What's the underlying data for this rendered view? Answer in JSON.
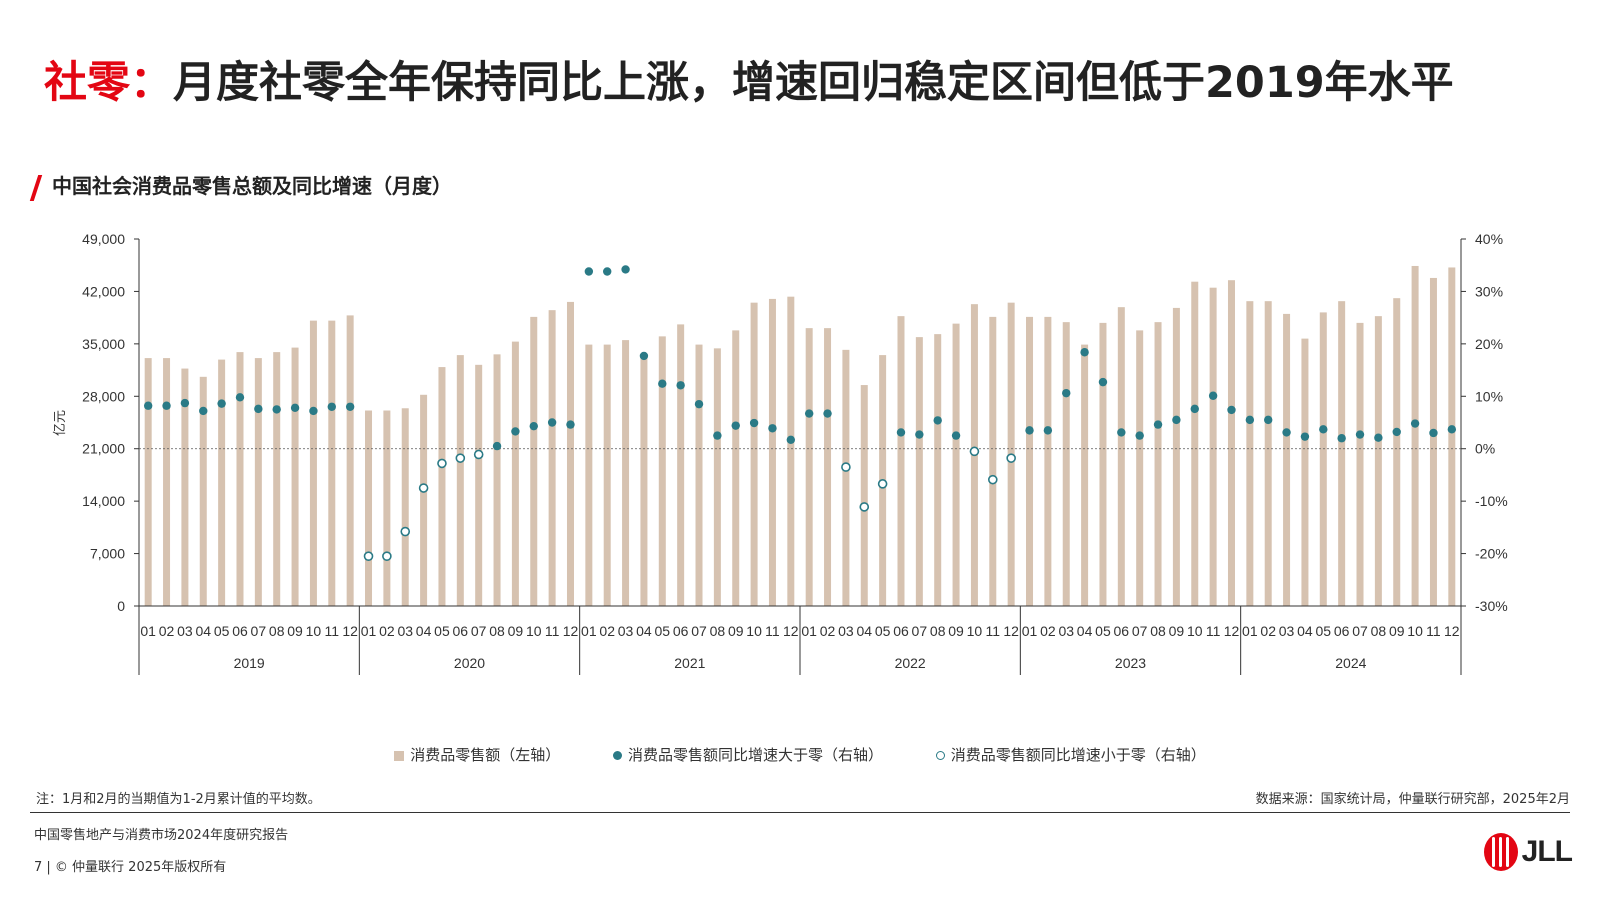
{
  "header": {
    "title_highlight": "社零：",
    "title_rest": "月度社零全年保持同比上涨，增速回归稳定区间但低于2019年水平"
  },
  "chart_title": "中国社会消费品零售总额及同比增速（月度）",
  "chart_data": {
    "type": "bar",
    "title": "中国社会消费品零售总额及同比增速（月度）",
    "ylabel": "亿元",
    "ylim": [
      0,
      49000
    ],
    "y_ticks": [
      "49,000",
      "42,000",
      "35,000",
      "28,000",
      "21,000",
      "14,000",
      "7,000",
      "0"
    ],
    "y2lim": [
      -30,
      40
    ],
    "y2_ticks": [
      "40%",
      "30%",
      "20%",
      "10%",
      "0%",
      "-10%",
      "-20%",
      "-30%"
    ],
    "years": [
      "2019",
      "2020",
      "2021",
      "2022",
      "2023",
      "2024"
    ],
    "months": [
      "01",
      "02",
      "03",
      "04",
      "05",
      "06",
      "07",
      "08",
      "09",
      "10",
      "11",
      "12"
    ],
    "series": [
      {
        "name": "消费品零售额（左轴）",
        "axis": "left",
        "values": [
          33100,
          33100,
          31700,
          30600,
          32900,
          33900,
          33100,
          33900,
          34500,
          38100,
          38100,
          38800,
          26100,
          26100,
          26400,
          28200,
          31900,
          33500,
          32200,
          33600,
          35300,
          38600,
          39500,
          40600,
          34900,
          34900,
          35500,
          33200,
          36000,
          37600,
          34900,
          34400,
          36800,
          40500,
          41000,
          41300,
          37100,
          37100,
          34200,
          29500,
          33500,
          38700,
          35900,
          36300,
          37700,
          40300,
          38600,
          40500,
          38600,
          38600,
          37900,
          34900,
          37800,
          39900,
          36800,
          37900,
          39800,
          43300,
          42500,
          43500,
          40700,
          40700,
          39000,
          35700,
          39200,
          40700,
          37800,
          38700,
          41100,
          45400,
          43800,
          45200
        ]
      },
      {
        "name": "消费品零售额同比增速（%）",
        "axis": "right",
        "values": [
          8.2,
          8.2,
          8.7,
          7.2,
          8.6,
          9.8,
          7.6,
          7.5,
          7.8,
          7.2,
          8.0,
          8.0,
          -20.5,
          -20.5,
          -15.8,
          -7.5,
          -2.8,
          -1.8,
          -1.1,
          0.5,
          3.3,
          4.3,
          5.0,
          4.6,
          33.8,
          33.8,
          34.2,
          17.7,
          12.4,
          12.1,
          8.5,
          2.5,
          4.4,
          4.9,
          3.9,
          1.7,
          6.7,
          6.7,
          -3.5,
          -11.1,
          -6.7,
          3.1,
          2.7,
          5.4,
          2.5,
          -0.5,
          -5.9,
          -1.8,
          3.5,
          3.5,
          10.6,
          18.4,
          12.7,
          3.1,
          2.5,
          4.6,
          5.5,
          7.6,
          10.1,
          7.4,
          5.5,
          5.5,
          3.1,
          2.3,
          3.7,
          2.0,
          2.7,
          2.1,
          3.2,
          4.8,
          3.0,
          3.7
        ]
      }
    ],
    "legend": [
      "消费品零售额（左轴）",
      "消费品零售额同比增速大于零（右轴）",
      "消费品零售额同比增速小于零（右轴）"
    ],
    "legend_position": "bottom",
    "grid": false,
    "colors": {
      "bar": "#d6c2b0",
      "dot": "#2a7a86",
      "zero_line": "#555555",
      "axis": "#333333"
    }
  },
  "footer": {
    "note": "注：1月和2月的当期值为1-2月累计值的平均数。",
    "source": "数据来源：国家统计局，仲量联行研究部，2025年2月",
    "report": "中国零售地产与消费市场2024年度研究报告",
    "copyright": "7 | © 仲量联行 2025年版权所有",
    "logo_text": "JLL"
  }
}
